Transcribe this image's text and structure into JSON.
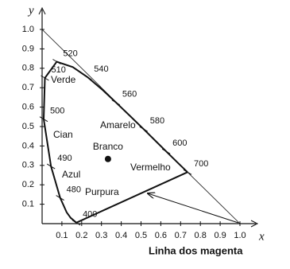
{
  "chart_data": {
    "type": "chromaticity",
    "xlabel": "x",
    "ylabel": "y",
    "xlim": [
      0,
      1.1
    ],
    "ylim": [
      0,
      1.1
    ],
    "xticks": [
      0.1,
      0.2,
      0.3,
      0.4,
      0.5,
      0.6,
      0.7,
      0.8,
      0.9,
      {
        "value": 1,
        "label": "1.0"
      }
    ],
    "yticks": [
      0.1,
      0.2,
      0.3,
      0.4,
      0.5,
      0.6,
      0.7,
      0.8,
      0.9,
      {
        "value": 1,
        "label": "1.0"
      }
    ],
    "color": "#111111",
    "x": [
      0.173,
      0.144,
      0.124,
      0.091,
      0.045,
      0.008,
      0.014,
      0.074,
      0.155,
      0.23,
      0.302,
      0.373,
      0.444,
      0.513,
      0.575,
      0.627,
      0.691,
      0.735
    ],
    "values": [
      0.005,
      0.03,
      0.058,
      0.133,
      0.295,
      0.538,
      0.75,
      0.834,
      0.806,
      0.754,
      0.692,
      0.624,
      0.555,
      0.487,
      0.424,
      0.372,
      0.308,
      0.265
    ],
    "wavelengths": [
      {
        "label": "400",
        "x": 0.173,
        "y": 0.005
      },
      {
        "label": "480",
        "x": 0.091,
        "y": 0.133
      },
      {
        "label": "490",
        "x": 0.045,
        "y": 0.295
      },
      {
        "label": "500",
        "x": 0.008,
        "y": 0.538
      },
      {
        "label": "510",
        "x": 0.014,
        "y": 0.75
      },
      {
        "label": "520",
        "x": 0.074,
        "y": 0.834
      },
      {
        "label": "540",
        "x": 0.23,
        "y": 0.754
      },
      {
        "label": "560",
        "x": 0.373,
        "y": 0.624
      },
      {
        "label": "580",
        "x": 0.513,
        "y": 0.487
      },
      {
        "label": "600",
        "x": 0.627,
        "y": 0.372
      },
      {
        "label": "700",
        "x": 0.735,
        "y": 0.265
      }
    ],
    "regions": [
      "Verde",
      "Cian",
      "Azul",
      "Purpura",
      "Amarelo",
      "Vermelho"
    ],
    "white_point": {
      "label": "Branco",
      "x": 0.333,
      "y": 0.333
    },
    "annotation": "Linha dos magenta"
  }
}
